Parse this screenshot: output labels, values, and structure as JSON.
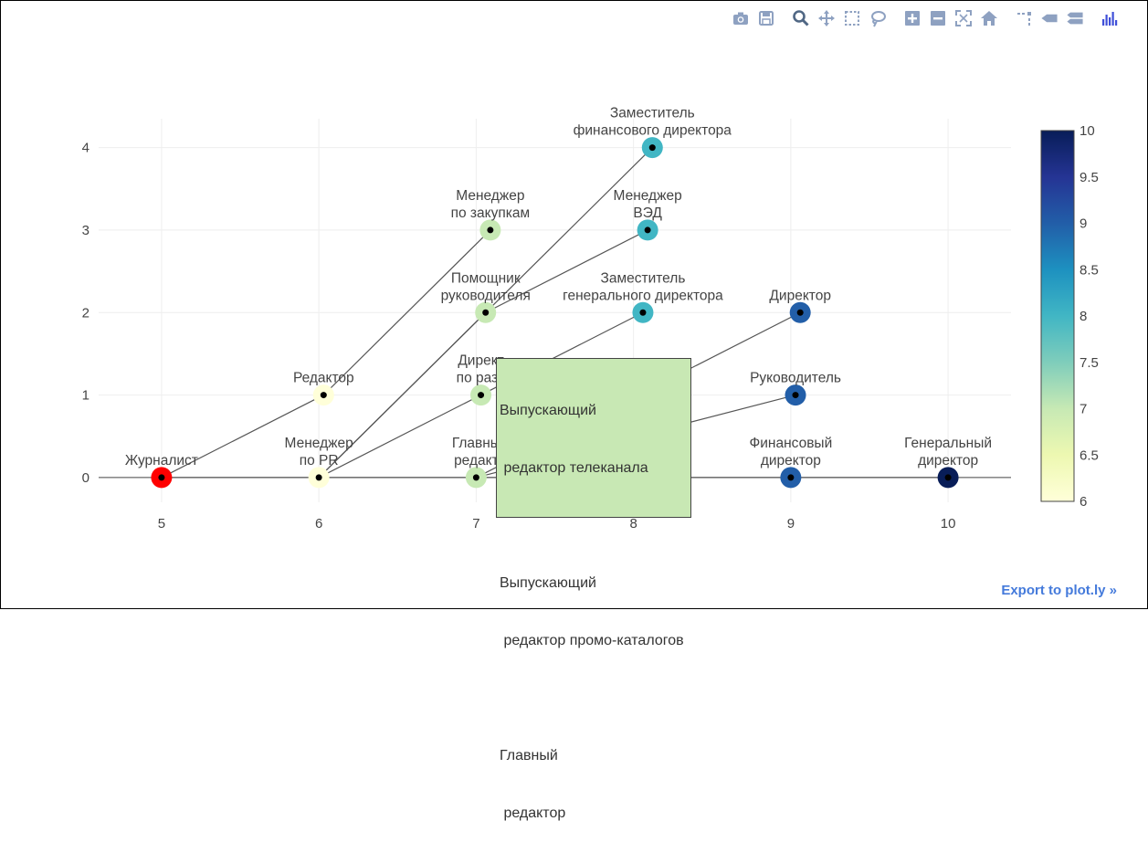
{
  "modebar": {
    "buttons": [
      {
        "icon": "camera-icon",
        "title": "Download plot as a png"
      },
      {
        "icon": "save-icon",
        "title": "Save and edit plot in cloud"
      },
      {
        "icon": "zoom-icon",
        "title": "Zoom"
      },
      {
        "icon": "pan-icon",
        "title": "Pan"
      },
      {
        "icon": "box-select-icon",
        "title": "Box Select"
      },
      {
        "icon": "lasso-select-icon",
        "title": "Lasso Select"
      },
      {
        "icon": "zoom-in-icon",
        "title": "Zoom in"
      },
      {
        "icon": "zoom-out-icon",
        "title": "Zoom out"
      },
      {
        "icon": "autoscale-icon",
        "title": "Autoscale"
      },
      {
        "icon": "home-icon",
        "title": "Reset axes"
      },
      {
        "icon": "spike-lines-icon",
        "title": "Toggle Spike Lines"
      },
      {
        "icon": "hover-closest-icon",
        "title": "Show closest data on hover"
      },
      {
        "icon": "hover-compare-icon",
        "title": "Compare data on hover"
      },
      {
        "icon": "plotly-logo-icon",
        "title": "Produced with Plotly"
      }
    ]
  },
  "export_link": "Export to plot.ly »",
  "hover": {
    "lines": [
      "Выпускающий",
      " редактор телеканала",
      "",
      "Выпускающий",
      " редактор промо-каталогов",
      "",
      "Главный",
      " редактор"
    ]
  },
  "colors": {
    "start_node": "#ff0000",
    "edge": "#555555",
    "grid": "#eeeeee",
    "hover_bg": "#c8e8b4",
    "colorscale": [
      "#ffffd9",
      "#edf8b1",
      "#c7e9b4",
      "#7fcdbb",
      "#41b6c4",
      "#1d91c0",
      "#225ea8",
      "#253494",
      "#081d58"
    ]
  },
  "chart_data": {
    "type": "scatter",
    "xlim": [
      4.6,
      10.4
    ],
    "ylim": [
      -0.3,
      4.35
    ],
    "xticks": [
      5,
      6,
      7,
      8,
      9,
      10
    ],
    "yticks": [
      0,
      1,
      2,
      3,
      4
    ],
    "grid": true,
    "colorbar": {
      "range": [
        6,
        10
      ],
      "ticks": [
        "6",
        "6.5",
        "7",
        "7.5",
        "8",
        "8.5",
        "9",
        "9.5",
        "10"
      ]
    },
    "nodes": [
      {
        "id": "journalist",
        "label": [
          "Журналист"
        ],
        "x": 5,
        "y": 0,
        "value": null
      },
      {
        "id": "editor",
        "label": [
          "Редактор"
        ],
        "x": 6.03,
        "y": 1,
        "value": 6
      },
      {
        "id": "pr",
        "label": [
          "Менеджер",
          "по PR"
        ],
        "x": 6.0,
        "y": 0,
        "value": 6
      },
      {
        "id": "purchase",
        "label": [
          "Менеджер",
          "по закупкам"
        ],
        "x": 7.09,
        "y": 3,
        "value": 7
      },
      {
        "id": "assistant",
        "label": [
          "Помощник",
          "руководителя"
        ],
        "x": 7.06,
        "y": 2,
        "value": 7
      },
      {
        "id": "dev_dir",
        "label": [
          "Директ",
          "по разв"
        ],
        "x": 7.03,
        "y": 1,
        "value": 7
      },
      {
        "id": "chief_ed",
        "label": [
          "Главны",
          "редакт"
        ],
        "x": 7.0,
        "y": 0,
        "value": 7
      },
      {
        "id": "dep_fin",
        "label": [
          "Заместитель",
          "финансового директора"
        ],
        "x": 8.12,
        "y": 4,
        "value": 8
      },
      {
        "id": "ved",
        "label": [
          "Менеджер",
          "ВЭД"
        ],
        "x": 8.09,
        "y": 3,
        "value": 8
      },
      {
        "id": "dep_gen",
        "label": [
          "Заместитель",
          "генерального директора"
        ],
        "x": 8.06,
        "y": 2,
        "value": 8
      },
      {
        "id": "director",
        "label": [
          "Директор"
        ],
        "x": 9.06,
        "y": 2,
        "value": 9
      },
      {
        "id": "head",
        "label": [
          "Руководитель"
        ],
        "x": 9.03,
        "y": 1,
        "value": 9
      },
      {
        "id": "fin_dir",
        "label": [
          "Финансовый",
          "директор"
        ],
        "x": 9.0,
        "y": 0,
        "value": 9
      },
      {
        "id": "gen_dir",
        "label": [
          "Генеральный",
          "директор"
        ],
        "x": 10.0,
        "y": 0,
        "value": 10
      }
    ],
    "edges": [
      [
        "journalist",
        "editor"
      ],
      [
        "journalist",
        "pr"
      ],
      [
        "editor",
        "purchase"
      ],
      [
        "pr",
        "assistant"
      ],
      [
        "pr",
        "dep_fin"
      ],
      [
        "pr",
        "dev_dir"
      ],
      [
        "pr",
        "chief_ed"
      ],
      [
        "assistant",
        "ved"
      ],
      [
        "dev_dir",
        "dep_gen"
      ],
      [
        "chief_ed",
        "director"
      ],
      [
        "chief_ed",
        "head"
      ],
      [
        "chief_ed",
        "fin_dir"
      ],
      [
        "fin_dir",
        "gen_dir"
      ]
    ]
  }
}
